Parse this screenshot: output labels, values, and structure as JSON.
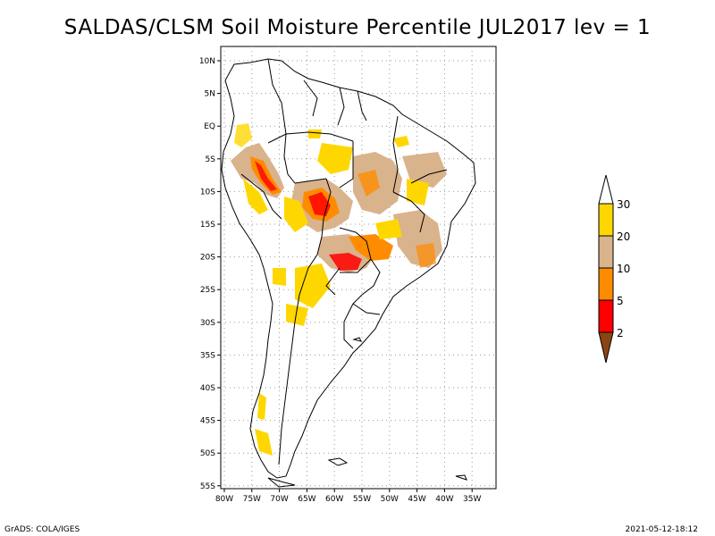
{
  "title": "SALDAS/CLSM Soil Moisture Percentile JUL2017 lev = 1",
  "axes": {
    "lat_ticks": [
      "10N",
      "5N",
      "EQ",
      "5S",
      "10S",
      "15S",
      "20S",
      "25S",
      "30S",
      "35S",
      "40S",
      "45S",
      "50S",
      "55S"
    ],
    "lon_ticks": [
      "80W",
      "75W",
      "70W",
      "65W",
      "60W",
      "55W",
      "50W",
      "45W",
      "40W",
      "35W"
    ]
  },
  "colorbar": {
    "labels": [
      "30",
      "20",
      "10",
      "5",
      "2"
    ],
    "colors": [
      "#ffffff",
      "#ffd700",
      "#d9b38c",
      "#ff8c00",
      "#ff0000",
      "#8b4513"
    ]
  },
  "footer": {
    "left": "GrADS: COLA/IGES",
    "right": "2021-05-12-18:12"
  }
}
